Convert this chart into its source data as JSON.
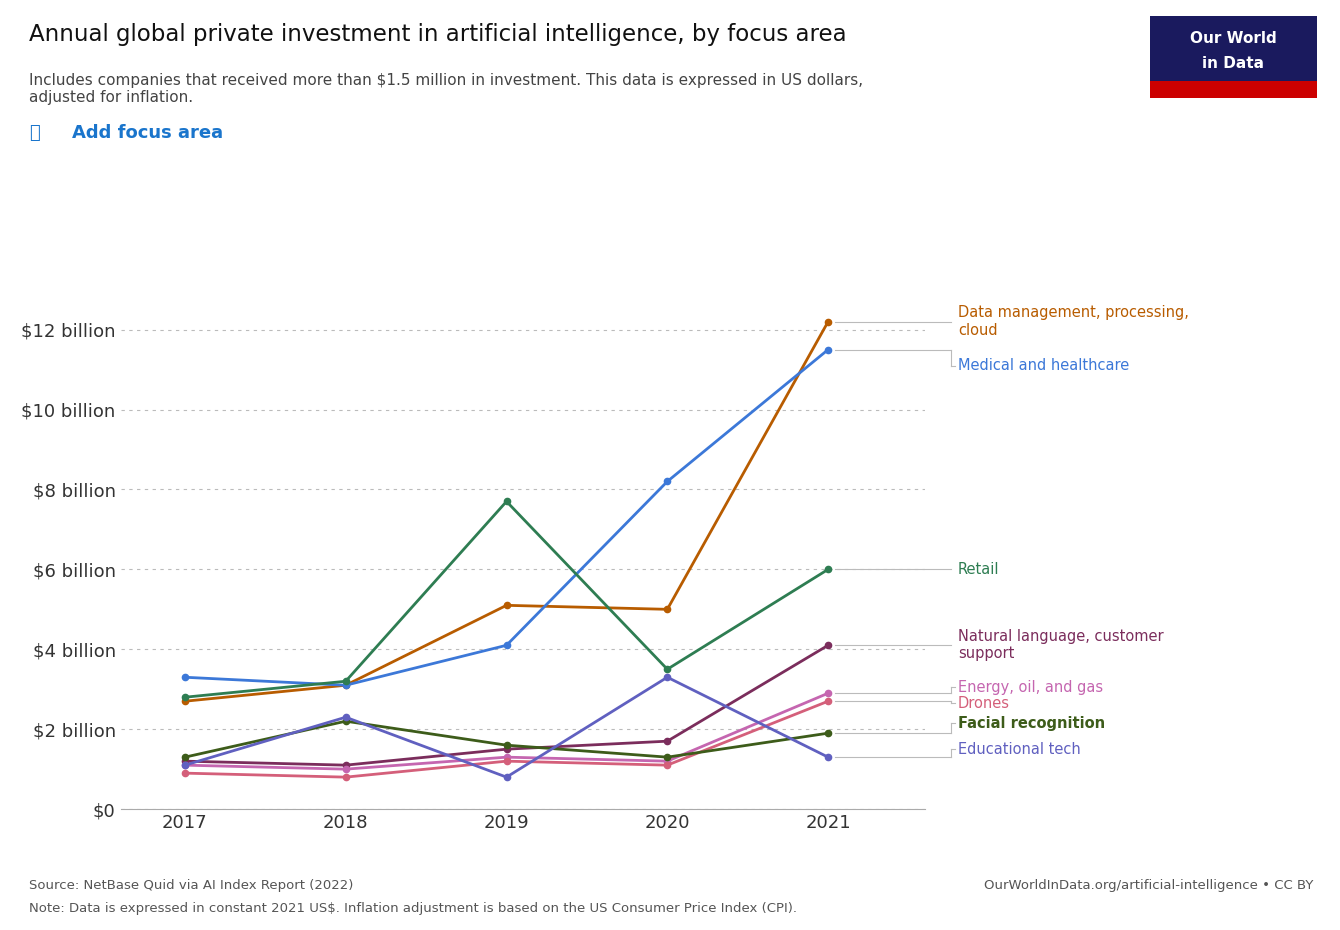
{
  "title": "Annual global private investment in artificial intelligence, by focus area",
  "subtitle": "Includes companies that received more than $1.5 million in investment. This data is expressed in US dollars,\nadjusted for inflation.",
  "add_focus_label": "Add focus area",
  "years": [
    2017,
    2018,
    2019,
    2020,
    2021
  ],
  "series": [
    {
      "name": "Data management, processing,\ncloud",
      "color": "#b85c00",
      "values": [
        2.7,
        3.1,
        5.1,
        5.0,
        12.2
      ]
    },
    {
      "name": "Medical and healthcare",
      "color": "#3c78d8",
      "values": [
        3.3,
        3.1,
        4.1,
        8.2,
        11.5
      ]
    },
    {
      "name": "Retail",
      "color": "#2e7d52",
      "values": [
        2.8,
        3.2,
        7.7,
        3.5,
        6.0
      ]
    },
    {
      "name": "Natural language, customer\nsupport",
      "color": "#7b2d5c",
      "values": [
        1.2,
        1.1,
        1.5,
        1.7,
        4.1
      ]
    },
    {
      "name": "Energy, oil, and gas",
      "color": "#c566b0",
      "values": [
        1.1,
        1.0,
        1.3,
        1.2,
        2.9
      ]
    },
    {
      "name": "Drones",
      "color": "#d45f7a",
      "values": [
        0.9,
        0.8,
        1.2,
        1.1,
        2.7
      ]
    },
    {
      "name": "Facial recognition",
      "color": "#3d5c1a",
      "values": [
        1.3,
        2.2,
        1.6,
        1.3,
        1.9
      ],
      "bold": true
    },
    {
      "name": "Educational tech",
      "color": "#6060c0",
      "values": [
        1.1,
        2.3,
        0.8,
        3.3,
        1.3
      ]
    }
  ],
  "label_positions": [
    {
      "name": "Data management, processing,\ncloud",
      "y_label": 12.2,
      "color": "#b85c00"
    },
    {
      "name": "Medical and healthcare",
      "y_label": 11.1,
      "color": "#3c78d8"
    },
    {
      "name": "Retail",
      "y_label": 6.0,
      "color": "#2e7d52"
    },
    {
      "name": "Natural language, customer\nsupport",
      "y_label": 4.1,
      "color": "#7b2d5c"
    },
    {
      "name": "Energy, oil, and gas",
      "y_label": 3.0,
      "color": "#c566b0"
    },
    {
      "name": "Drones",
      "y_label": 2.65,
      "color": "#d45f7a"
    },
    {
      "name": "Facial recognition",
      "y_label": 2.2,
      "color": "#3d5c1a",
      "bold": true
    },
    {
      "name": "Educational tech",
      "y_label": 1.5,
      "color": "#6060c0"
    }
  ],
  "ylim": [
    0,
    13.5
  ],
  "yticks": [
    0,
    2,
    4,
    6,
    8,
    10,
    12
  ],
  "ytick_labels": [
    "$0",
    "$2 billion",
    "$4 billion",
    "$6 billion",
    "$8 billion",
    "$10 billion",
    "$12 billion"
  ],
  "bg_color": "#ffffff",
  "source_line1": "Source: NetBase Quid via AI Index Report (2022)",
  "source_line2": "Note: Data is expressed in constant 2021 US$. Inflation adjustment is based on the US Consumer Price Index (CPI).",
  "credit_text": "OurWorldInData.org/artificial-intelligence • CC BY",
  "owid_bg_color": "#1a1a5e",
  "owid_red_color": "#cc0000"
}
